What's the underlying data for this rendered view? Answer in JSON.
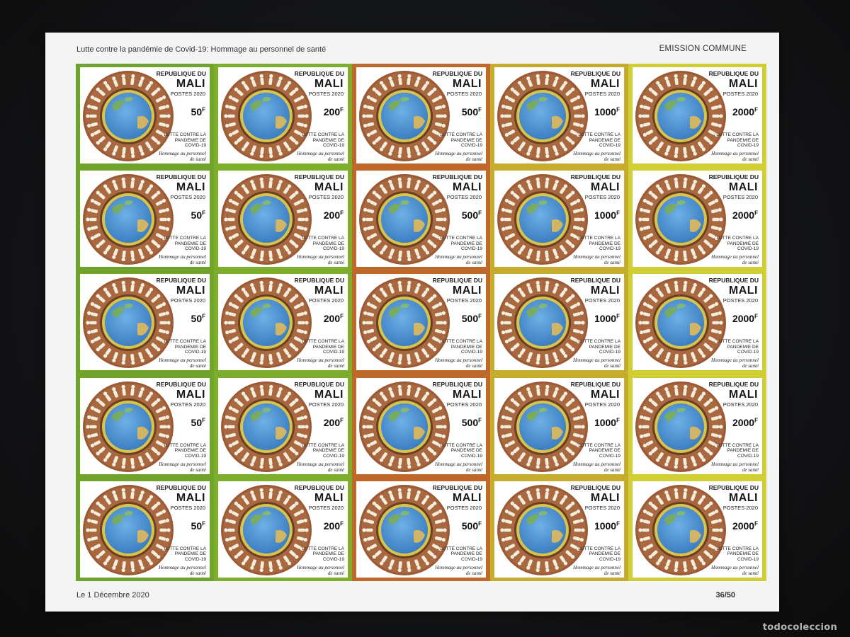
{
  "sheet": {
    "title": "Lutte contre la pandémie de Covid-19: Hommage au personnel de santé",
    "emission": "EMISSION COMMUNE",
    "date": "Le 1 Décembre 2020",
    "number": "36/50"
  },
  "stamp": {
    "country_line": "REPUBLIQUE DU",
    "country": "MALI",
    "postes": "POSTES 2020",
    "lutte": "LUTTE CONTRE LA PANDEMIE DE COVID-19",
    "hommage": "Hommage au personnel de santé",
    "currency_mark": "F"
  },
  "columns": [
    {
      "value": "50",
      "color": "#6fa32a"
    },
    {
      "value": "200",
      "color": "#7cae2c"
    },
    {
      "value": "500",
      "color": "#c0672a"
    },
    {
      "value": "1000",
      "color": "#c5ac2c"
    },
    {
      "value": "2000",
      "color": "#cfcf35"
    }
  ],
  "rows": 5,
  "watermark": "todocoleccion"
}
